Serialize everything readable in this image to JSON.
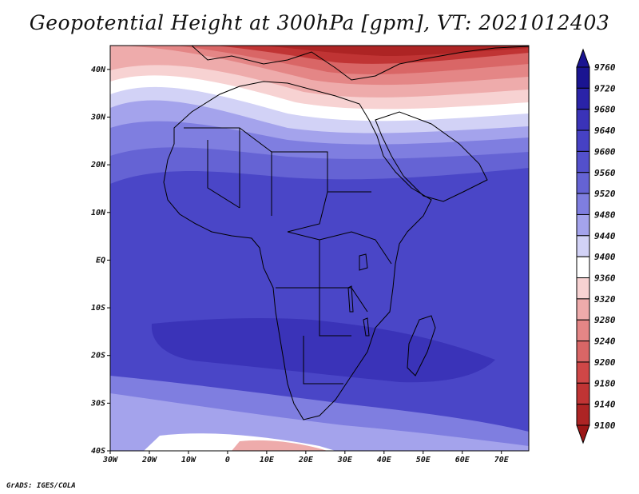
{
  "title": "Geopotential Height at 300hPa [gpm], VT: 2021012403",
  "credit": "GrADS: IGES/COLA",
  "map": {
    "lon_range": [
      -30,
      77
    ],
    "lat_range": [
      -40,
      45
    ],
    "lon_ticks": [
      "30W",
      "20W",
      "10W",
      "0",
      "10E",
      "20E",
      "30E",
      "40E",
      "50E",
      "60E",
      "70E"
    ],
    "lat_ticks": [
      "40N",
      "30N",
      "20N",
      "10N",
      "EQ",
      "10S",
      "20S",
      "30S",
      "40S"
    ]
  },
  "colorbar": {
    "levels": [
      "9760",
      "9720",
      "9680",
      "9640",
      "9600",
      "9560",
      "9520",
      "9480",
      "9440",
      "9400",
      "9360",
      "9320",
      "9280",
      "9240",
      "9200",
      "9180",
      "9140",
      "9100"
    ],
    "colors": [
      "#1a1491",
      "#2a23a8",
      "#3a33b8",
      "#4641c4",
      "#5350cc",
      "#6563d4",
      "#7f7ee0",
      "#a4a3ec",
      "#d2d2f6",
      "#ffffff",
      "#f7d2d2",
      "#eeabab",
      "#e48686",
      "#d96666",
      "#cf4747",
      "#c03434",
      "#ad2424",
      "#9c1616"
    ]
  }
}
